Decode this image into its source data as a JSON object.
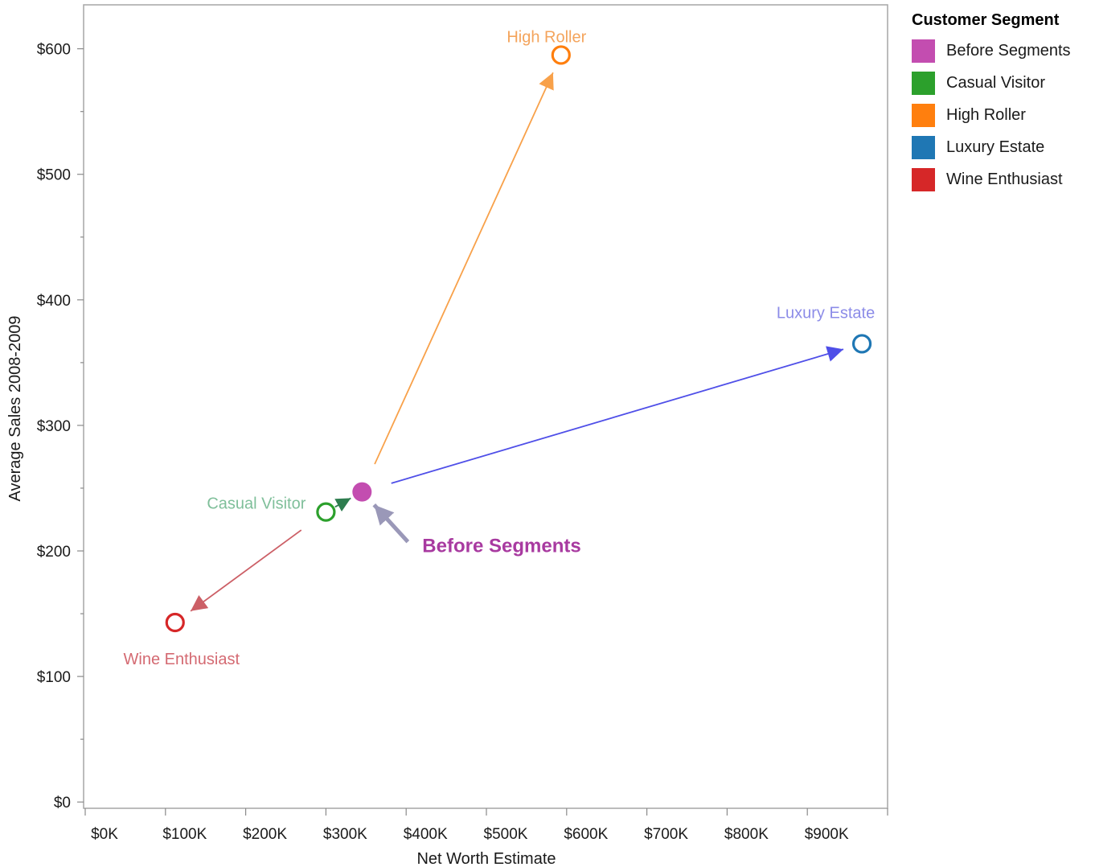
{
  "chart_data": {
    "type": "scatter",
    "xlabel": "Net Worth Estimate",
    "ylabel": "Average Sales 2008-2009",
    "xlim": [
      -2,
      1000
    ],
    "ylim": [
      -5,
      635
    ],
    "x_ticks": [
      0,
      100,
      200,
      300,
      400,
      500,
      600,
      700,
      800,
      900,
      1000
    ],
    "x_tick_labels": [
      "$0K",
      "$100K",
      "$200K",
      "$300K",
      "$400K",
      "$500K",
      "$600K",
      "$700K",
      "$800K",
      "$900K",
      ""
    ],
    "y_ticks": [
      0,
      100,
      200,
      300,
      400,
      500,
      600
    ],
    "y_tick_labels": [
      "$0",
      "$100",
      "$200",
      "$300",
      "$400",
      "$500",
      "$600"
    ],
    "grid": false,
    "legend_title": "Customer Segment",
    "legend_position": "right",
    "series": [
      {
        "name": "Before Segments",
        "x": 345,
        "y": 247,
        "color": "#c34db0",
        "filled": true,
        "label": "Before Segments",
        "label_color": "#a83aa0",
        "label_bold": true
      },
      {
        "name": "Casual Visitor",
        "x": 300,
        "y": 231,
        "color": "#2ca02c",
        "filled": false,
        "label": "Casual Visitor",
        "label_color": "#7fbf9a",
        "label_bold": false
      },
      {
        "name": "High Roller",
        "x": 593,
        "y": 595,
        "color": "#ff7f0e",
        "filled": false,
        "label": "High Roller",
        "label_color": "#f4a45c",
        "label_bold": false
      },
      {
        "name": "Luxury Estate",
        "x": 968,
        "y": 365,
        "color": "#1f77b4",
        "filled": false,
        "label": "Luxury Estate",
        "label_color": "#8c8ce8",
        "label_bold": false
      },
      {
        "name": "Wine Enthusiast",
        "x": 112,
        "y": 143,
        "color": "#d62728",
        "filled": false,
        "label": "Wine Enthusiast",
        "label_color": "#d46a72",
        "label_bold": false
      }
    ],
    "arrows": [
      {
        "from": "Before Segments",
        "to": "High Roller",
        "color": "#f8a14a"
      },
      {
        "from": "Before Segments",
        "to": "Luxury Estate",
        "color": "#4f4fe8"
      },
      {
        "from": "Casual Visitor",
        "to": "Wine Enthusiast",
        "color": "#cc5f66"
      },
      {
        "from": "Casual Visitor",
        "to": "Before Segments",
        "color": "#2e7d4f"
      }
    ],
    "pointer": {
      "target": "Before Segments",
      "color": "#9a98b8"
    }
  }
}
